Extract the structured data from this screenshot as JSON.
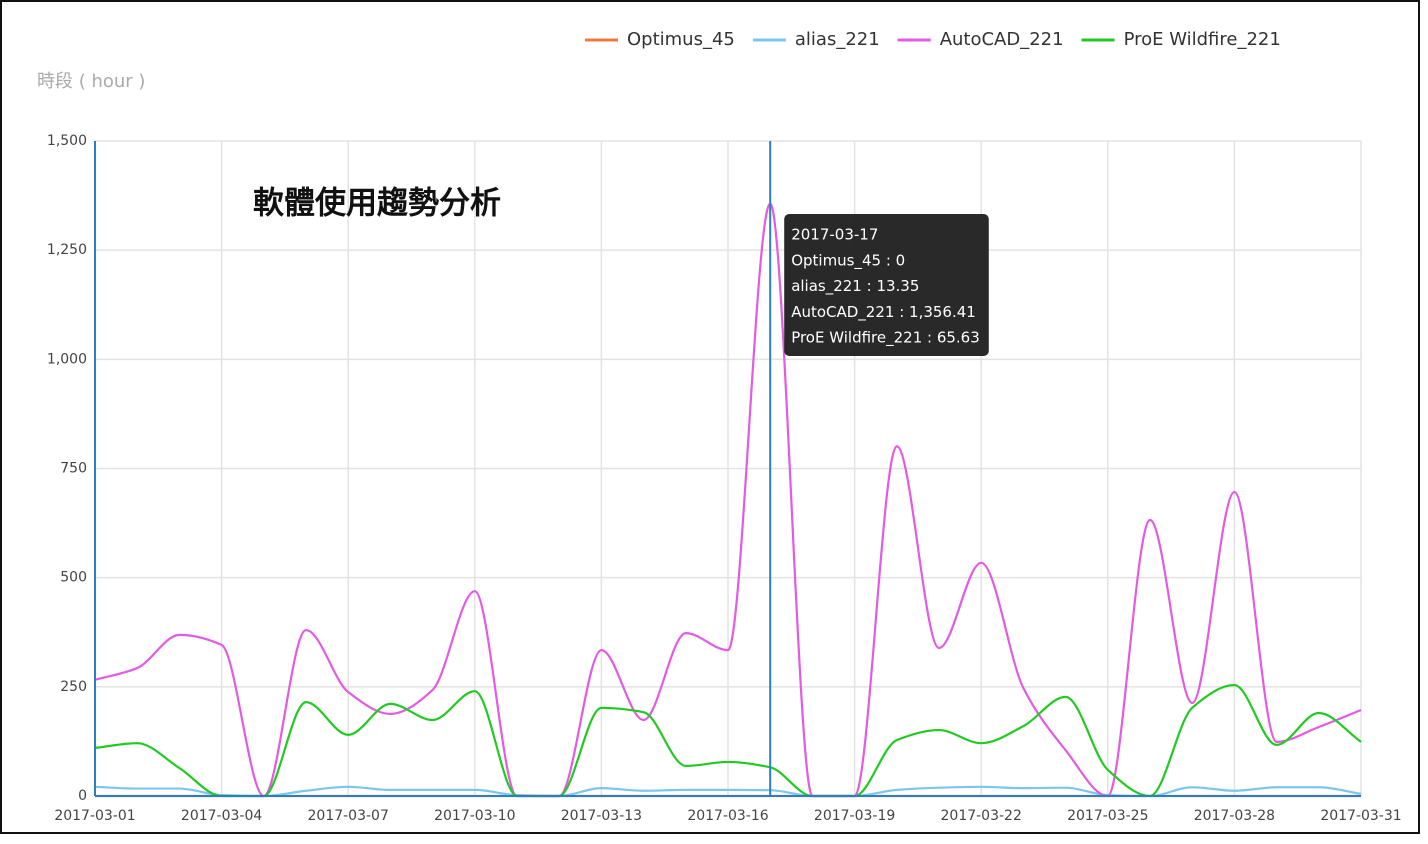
{
  "chart_data": {
    "type": "line",
    "title": "軟體使用趨勢分析",
    "y_label": "時段 ( hour )",
    "x": [
      "2017-03-01",
      "2017-03-02",
      "2017-03-03",
      "2017-03-04",
      "2017-03-05",
      "2017-03-06",
      "2017-03-07",
      "2017-03-08",
      "2017-03-09",
      "2017-03-10",
      "2017-03-11",
      "2017-03-12",
      "2017-03-13",
      "2017-03-14",
      "2017-03-15",
      "2017-03-16",
      "2017-03-17",
      "2017-03-18",
      "2017-03-19",
      "2017-03-20",
      "2017-03-21",
      "2017-03-22",
      "2017-03-23",
      "2017-03-24",
      "2017-03-25",
      "2017-03-26",
      "2017-03-27",
      "2017-03-28",
      "2017-03-29",
      "2017-03-30",
      "2017-03-31"
    ],
    "xticks": [
      "2017-03-01",
      "2017-03-04",
      "2017-03-07",
      "2017-03-10",
      "2017-03-13",
      "2017-03-16",
      "2017-03-19",
      "2017-03-22",
      "2017-03-25",
      "2017-03-28",
      "2017-03-31"
    ],
    "ylim": [
      0,
      1500
    ],
    "yticks": [
      0,
      250,
      500,
      750,
      {
        "value": 1000,
        "label": "1,000"
      },
      {
        "value": 1250,
        "label": "1,250"
      },
      {
        "value": 1500,
        "label": "1,500"
      }
    ],
    "grid": true,
    "series": [
      {
        "name": "Optimus_45",
        "color": "#f0783c",
        "values": [
          0,
          0,
          0,
          0,
          0,
          0,
          0,
          0,
          0,
          0,
          0,
          0,
          0,
          0,
          0,
          0,
          0,
          0,
          0,
          0,
          0,
          0,
          0,
          0,
          0,
          0,
          0,
          0,
          0,
          0,
          0
        ]
      },
      {
        "name": "alias_221",
        "color": "#7cc6ee",
        "values": [
          21,
          17,
          17,
          2,
          0,
          12,
          21,
          14,
          14,
          14,
          2,
          0,
          18,
          12,
          14,
          14,
          13.35,
          0,
          0,
          14,
          19,
          21,
          18,
          19,
          2,
          0,
          20,
          12,
          20,
          20,
          5
        ]
      },
      {
        "name": "AutoCAD_221",
        "color": "#e25be2",
        "values": [
          266,
          293,
          369,
          346,
          0,
          380,
          238,
          188,
          243,
          469,
          0,
          0,
          334,
          174,
          373,
          334,
          1356.41,
          0,
          0,
          801,
          339,
          534,
          247,
          105,
          0,
          632,
          213,
          696,
          124,
          158,
          197
        ]
      },
      {
        "name": "ProE Wildfire_221",
        "color": "#22c922",
        "values": [
          110,
          121,
          64,
          0,
          0,
          215,
          140,
          211,
          174,
          240,
          0,
          0,
          202,
          192,
          69,
          78,
          65.63,
          0,
          0,
          128,
          151,
          121,
          160,
          227,
          60,
          0,
          202,
          254,
          117,
          190,
          124
        ]
      }
    ],
    "tooltip": {
      "date": "2017-03-17",
      "lines": [
        "Optimus_45 : 0",
        "alias_221 : 13.35",
        "AutoCAD_221 : 1,356.41",
        "ProE Wildfire_221 : 65.63"
      ]
    }
  }
}
